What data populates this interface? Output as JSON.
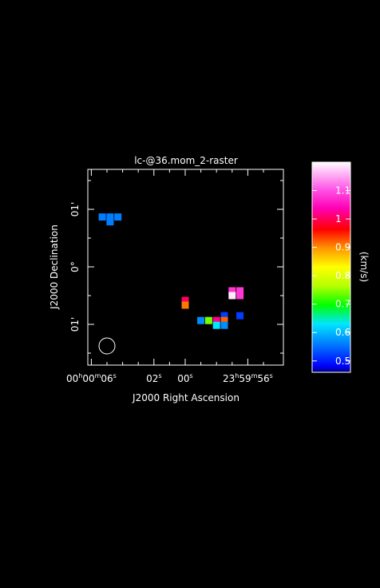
{
  "chart_data": {
    "type": "heatmap",
    "title": "lc-@36.mom_2-raster",
    "xlabel": "J2000 Right Ascension",
    "ylabel": "J2000 Declination",
    "x_ticks": [
      {
        "h": "00",
        "m": "00",
        "s": "06"
      },
      {
        "s": "02"
      },
      {
        "s": "00"
      },
      {
        "h": "23",
        "m": "59",
        "s": "56"
      }
    ],
    "y_ticks": [
      "01'",
      "0°",
      "01'"
    ],
    "colorbar": {
      "label": "(km/s)",
      "range": [
        0.46,
        1.2
      ],
      "ticks": [
        "0.5",
        "0.6",
        "0.7",
        "0.8",
        "0.9",
        "1",
        "1.1"
      ],
      "tick_values": [
        0.5,
        0.6,
        0.7,
        0.8,
        0.9,
        1.0,
        1.1
      ]
    },
    "beam": "circle",
    "cells": [
      {
        "ra": "00h00m05.3s",
        "dec": "+00°00'52\"",
        "value": 0.56
      },
      {
        "ra": "00h00m04.8s",
        "dec": "+00°00'52\"",
        "value": 0.56
      },
      {
        "ra": "00h00m04.3s",
        "dec": "+00°00'52\"",
        "value": 0.56
      },
      {
        "ra": "00h00m04.8s",
        "dec": "+00°00'47\"",
        "value": 0.56
      },
      {
        "ra": "00h00m00.0s",
        "dec": "-00°00'35\"",
        "value": 1.0
      },
      {
        "ra": "00h00m00.0s",
        "dec": "-00°00'40\"",
        "value": 0.91
      },
      {
        "ra": "23h59m57.0s",
        "dec": "-00°00'25\"",
        "value": 1.08
      },
      {
        "ra": "23h59m56.5s",
        "dec": "-00°00'25\"",
        "value": 1.08
      },
      {
        "ra": "23h59m57.0s",
        "dec": "-00°00'30\"",
        "value": 1.19
      },
      {
        "ra": "23h59m56.5s",
        "dec": "-00°00'30\"",
        "value": 1.08
      },
      {
        "ra": "23h59m57.5s",
        "dec": "-00°00'51\"",
        "value": 0.52
      },
      {
        "ra": "23h59m56.5s",
        "dec": "-00°00'51\"",
        "value": 0.52
      },
      {
        "ra": "23h59m59.0s",
        "dec": "-00°00'56\"",
        "value": 0.57
      },
      {
        "ra": "23h59m58.5s",
        "dec": "-00°00'56\"",
        "value": 0.74
      },
      {
        "ra": "23h59m58.0s",
        "dec": "-00°00'56\"",
        "value": 1.02
      },
      {
        "ra": "23h59m57.5s",
        "dec": "-00°00'56\"",
        "value": 0.92
      },
      {
        "ra": "23h59m58.0s",
        "dec": "-00°01'01\"",
        "value": 0.63
      },
      {
        "ra": "23h59m57.5s",
        "dec": "-00°01'01\"",
        "value": 0.57
      }
    ]
  }
}
